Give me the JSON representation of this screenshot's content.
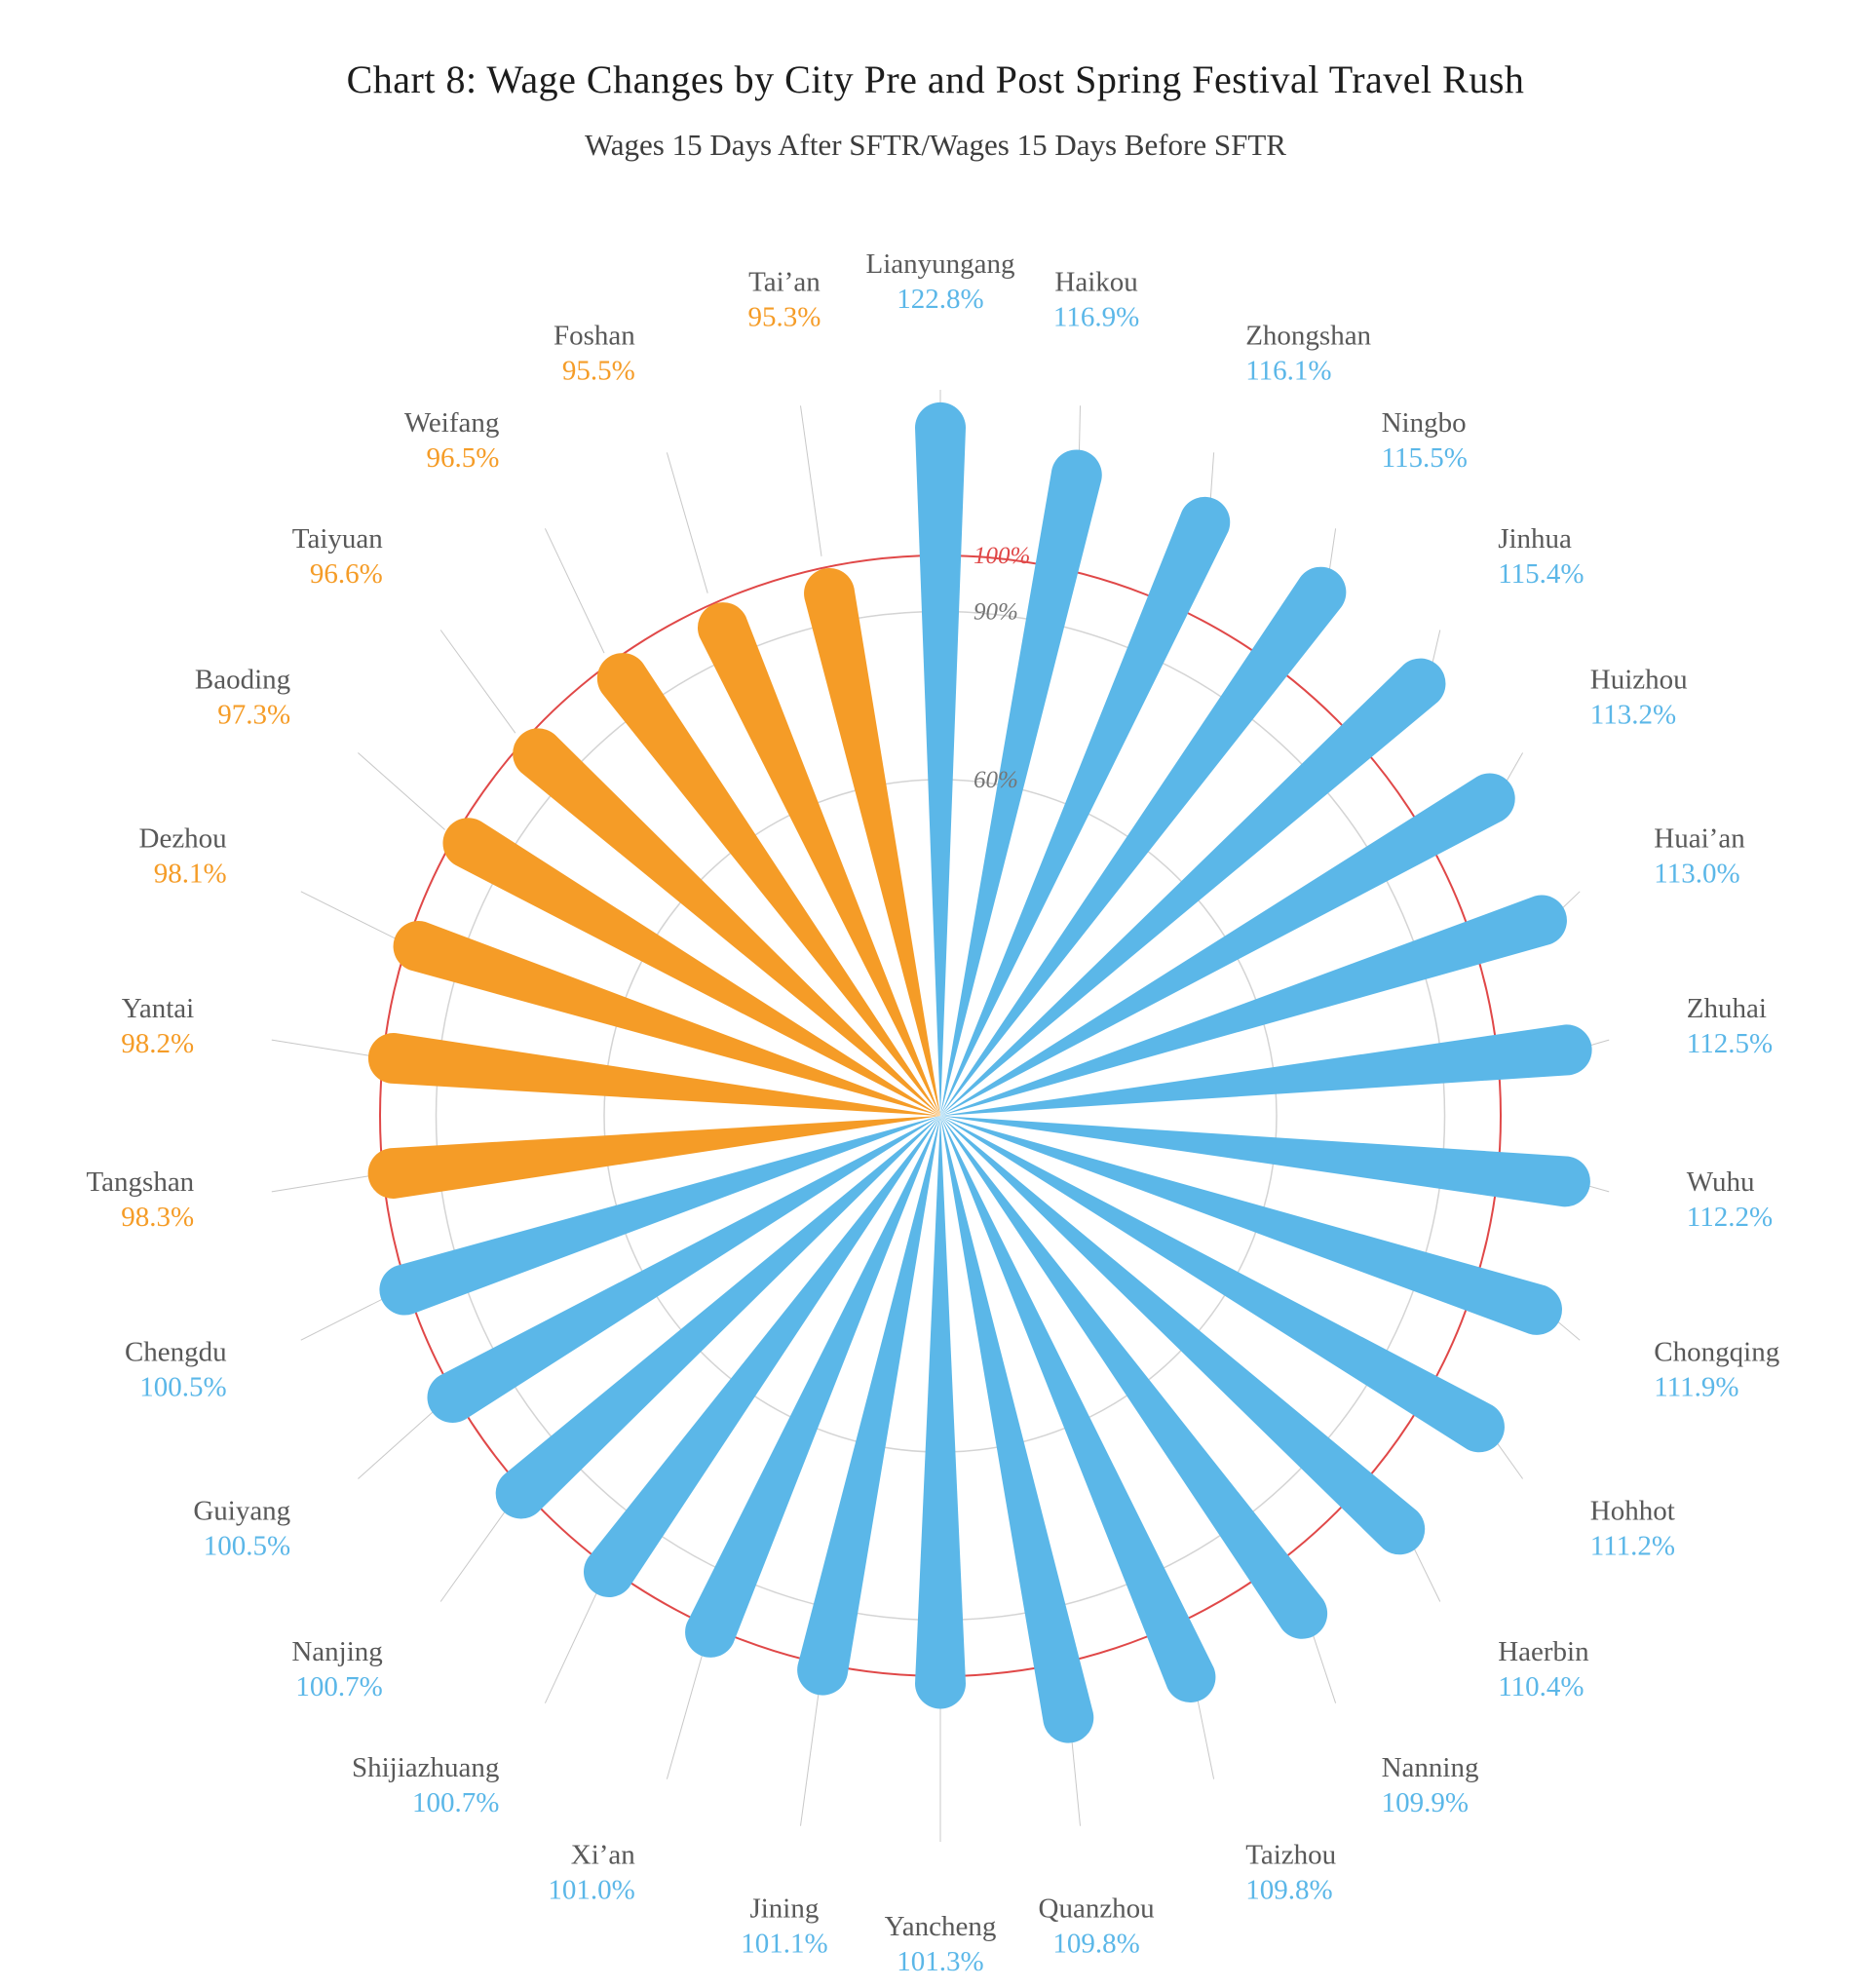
{
  "colors": {
    "above": "#5BB7E8",
    "below": "#F59C27",
    "reference": "#E04848",
    "grid": "#D4D4D4",
    "leader": "#C8C8C8",
    "city_label": "#595959",
    "tick": "#757575",
    "title": "#1C1C1C",
    "subtitle": "#3D3D3D"
  },
  "chart_data": {
    "type": "bar",
    "layout": "polar-rose",
    "title": "Chart 8: Wage Changes by City Pre and Post Spring Festival Travel Rush",
    "subtitle": "Wages 15 Days After SFTR/Wages 15 Days Before SFTR",
    "units": "%",
    "start_angle_deg": -90,
    "direction": "clockwise",
    "angle_step_deg": 12,
    "rlim": [
      0,
      130
    ],
    "reference_value": 100,
    "grid": true,
    "ticks": [
      {
        "label": "60%",
        "value": 60,
        "emphasis": false
      },
      {
        "label": "90%",
        "value": 90,
        "emphasis": false
      },
      {
        "label": "100%",
        "value": 100,
        "emphasis": true
      }
    ],
    "categories": [
      "Lianyungang",
      "Haikou",
      "Zhongshan",
      "Ningbo",
      "Jinhua",
      "Huizhou",
      "Huai’an",
      "Zhuhai",
      "Wuhu",
      "Chongqing",
      "Hohhot",
      "Haerbin",
      "Nanning",
      "Taizhou",
      "Quanzhou",
      "Yancheng",
      "Jining",
      "Xi’an",
      "Shijiazhuang",
      "Nanjing",
      "Guiyang",
      "Chengdu",
      "Tangshan",
      "Yantai",
      "Dezhou",
      "Baoding",
      "Taiyuan",
      "Weifang",
      "Foshan",
      "Tai’an"
    ],
    "values": [
      122.8,
      116.9,
      116.1,
      115.5,
      115.4,
      113.2,
      113.0,
      112.5,
      112.2,
      111.9,
      111.2,
      110.4,
      109.9,
      109.8,
      109.8,
      101.3,
      101.1,
      101.0,
      100.7,
      100.7,
      100.5,
      100.5,
      98.3,
      98.2,
      98.1,
      97.3,
      96.6,
      96.5,
      95.5,
      95.3
    ]
  }
}
